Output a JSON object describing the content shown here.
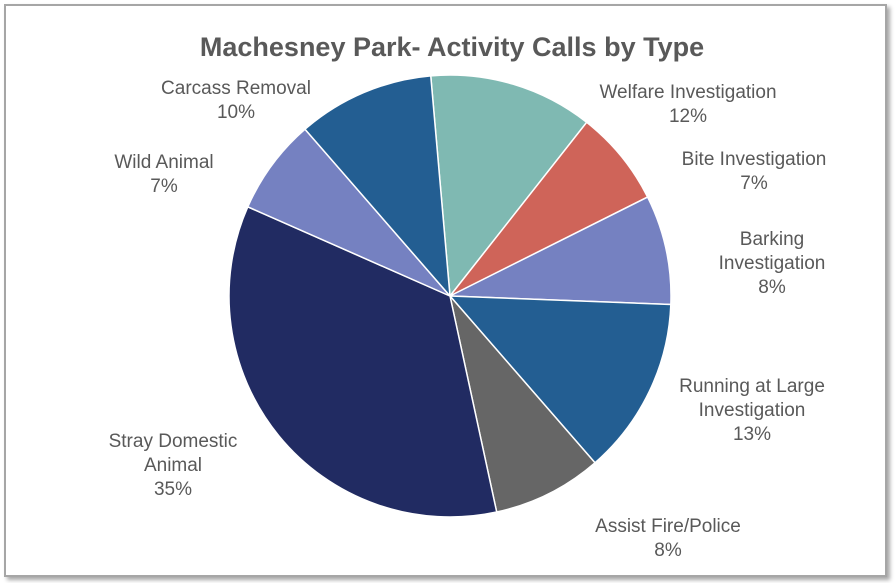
{
  "chart_data": {
    "type": "pie",
    "title": "Machesney Park- Activity Calls by Type",
    "slices": [
      {
        "label": [
          "Welfare Investigation"
        ],
        "pct_label": "12%",
        "value": 12,
        "color": "#7fb9b2"
      },
      {
        "label": [
          "Bite Investigation"
        ],
        "pct_label": "7%",
        "value": 7,
        "color": "#cf6459"
      },
      {
        "label": [
          "Barking",
          "Investigation"
        ],
        "pct_label": "8%",
        "value": 8,
        "color": "#7581c1"
      },
      {
        "label": [
          "Running at Large",
          "Investigation"
        ],
        "pct_label": "13%",
        "value": 13,
        "color": "#235e92"
      },
      {
        "label": [
          "Assist Fire/Police"
        ],
        "pct_label": "8%",
        "value": 8,
        "color": "#666666"
      },
      {
        "label": [
          "Stray Domestic",
          "Animal"
        ],
        "pct_label": "35%",
        "value": 35,
        "color": "#212b62"
      },
      {
        "label": [
          "Wild Animal"
        ],
        "pct_label": "7%",
        "value": 7,
        "color": "#7581c1"
      },
      {
        "label": [
          "Carcass Removal"
        ],
        "pct_label": "10%",
        "value": 10,
        "color": "#235e92"
      }
    ],
    "legend": "none"
  }
}
